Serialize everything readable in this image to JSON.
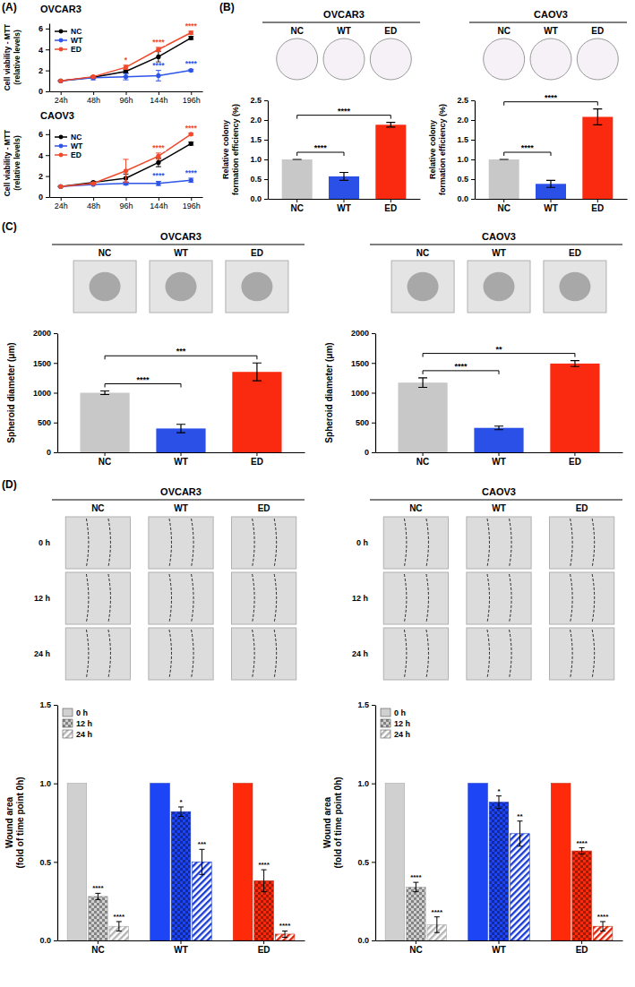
{
  "chart_data": [
    {
      "type": "line",
      "panel": "(A)",
      "title": "OVCAR3",
      "y_label": [
        "Cell viability - MTT",
        "(relative levels)"
      ],
      "categories": [
        "24h",
        "48h",
        "96h",
        "144h",
        "196h"
      ],
      "series": [
        {
          "name": "NC",
          "color": "#000000",
          "values": [
            1.0,
            1.35,
            1.9,
            3.3,
            5.1
          ],
          "errors": [
            0.03,
            0.08,
            0.15,
            0.5,
            0.15
          ]
        },
        {
          "name": "WT",
          "color": "#2d55e8",
          "values": [
            1.0,
            1.3,
            1.4,
            1.5,
            2.0
          ],
          "errors": [
            0.03,
            0.2,
            0.3,
            0.5,
            0.1
          ]
        },
        {
          "name": "ED",
          "color": "#f0492b",
          "values": [
            1.0,
            1.4,
            2.3,
            4.0,
            5.6
          ],
          "errors": [
            0.03,
            0.1,
            0.2,
            0.2,
            0.15
          ]
        }
      ],
      "ylim": [
        0,
        6.5
      ],
      "yticks": [
        0,
        2,
        4,
        6
      ],
      "marker": "circle",
      "legend": "upper left",
      "annotations": [
        {
          "text": "*",
          "series": "ED",
          "x": "96h"
        },
        {
          "text": "****",
          "series": "ED",
          "x": "144h"
        },
        {
          "text": "****",
          "series": "ED",
          "x": "196h"
        },
        {
          "text": "****",
          "series": "WT",
          "x": "144h"
        },
        {
          "text": "****",
          "series": "WT",
          "x": "196h"
        }
      ]
    },
    {
      "type": "line",
      "title": "CAOV3",
      "y_label": [
        "Cell viability - MTT",
        "(relative levels)"
      ],
      "categories": [
        "24h",
        "48h",
        "96h",
        "144h",
        "196h"
      ],
      "series": [
        {
          "name": "NC",
          "color": "#000000",
          "values": [
            1.0,
            1.4,
            1.8,
            3.3,
            5.1
          ],
          "errors": [
            0.03,
            0.05,
            0.4,
            0.4,
            0.15
          ]
        },
        {
          "name": "WT",
          "color": "#2d55e8",
          "values": [
            1.0,
            1.2,
            1.3,
            1.3,
            1.6
          ],
          "errors": [
            0.03,
            0.05,
            0.15,
            0.2,
            0.2
          ]
        },
        {
          "name": "ED",
          "color": "#f0492b",
          "values": [
            1.0,
            1.3,
            2.5,
            3.9,
            6.0
          ],
          "errors": [
            0.03,
            0.1,
            1.1,
            0.3,
            0.1
          ]
        }
      ],
      "ylim": [
        0,
        6.5
      ],
      "yticks": [
        0,
        2,
        4,
        6
      ],
      "marker": "circle",
      "legend": "upper left",
      "annotations": [
        {
          "text": "****",
          "series": "ED",
          "x": "144h"
        },
        {
          "text": "****",
          "series": "ED",
          "x": "196h"
        },
        {
          "text": "****",
          "series": "WT",
          "x": "144h"
        },
        {
          "text": "****",
          "series": "WT",
          "x": "196h"
        }
      ]
    },
    {
      "type": "bar",
      "panel": "(B)",
      "title": "OVCAR3",
      "image_labels": {
        "columns": [
          "NC",
          "WT",
          "ED"
        ]
      },
      "y_label": [
        "Relative colony",
        "formation efficiency (%)"
      ],
      "categories": [
        "NC",
        "WT",
        "ED"
      ],
      "values": [
        1.0,
        0.57,
        1.88
      ],
      "errors": [
        0,
        0.1,
        0.06
      ],
      "colors": [
        "#c8c8c8",
        "#2a50e8",
        "#fa2a10"
      ],
      "ylim": [
        0,
        2.5
      ],
      "yticks": [
        {
          "value": 0,
          "label": "0.0"
        },
        {
          "value": 0.5,
          "label": "0.5"
        },
        {
          "value": 1,
          "label": "1.0"
        },
        {
          "value": 1.5,
          "label": "1.5"
        },
        {
          "value": 2,
          "label": "2.0"
        },
        {
          "value": 2.5,
          "label": "2.5"
        }
      ],
      "annotations": [
        {
          "text": "****",
          "from": "NC",
          "to": "WT"
        },
        {
          "text": "****",
          "from": "NC",
          "to": "ED"
        }
      ]
    },
    {
      "type": "bar",
      "title": "CAOV3",
      "image_labels": {
        "columns": [
          "NC",
          "WT",
          "ED"
        ]
      },
      "y_label": [
        "Relative colony",
        "formation efficiency (%)"
      ],
      "categories": [
        "NC",
        "WT",
        "ED"
      ],
      "values": [
        1.0,
        0.38,
        2.08
      ],
      "errors": [
        0,
        0.09,
        0.2
      ],
      "colors": [
        "#c8c8c8",
        "#2a50e8",
        "#fa2a10"
      ],
      "ylim": [
        0,
        2.5
      ],
      "yticks": [
        {
          "value": 0,
          "label": "0.0"
        },
        {
          "value": 0.5,
          "label": "0.5"
        },
        {
          "value": 1,
          "label": "1.0"
        },
        {
          "value": 1.5,
          "label": "1.5"
        },
        {
          "value": 2,
          "label": "2.0"
        },
        {
          "value": 2.5,
          "label": "2.5"
        }
      ],
      "annotations": [
        {
          "text": "****",
          "from": "NC",
          "to": "WT"
        },
        {
          "text": "****",
          "from": "NC",
          "to": "ED"
        }
      ]
    },
    {
      "type": "bar",
      "panel": "(C)",
      "title": "OVCAR3",
      "image_labels": {
        "columns": [
          "NC",
          "WT",
          "ED"
        ]
      },
      "y_label": [
        "Spheroid diameter (μm)"
      ],
      "categories": [
        "NC",
        "WT",
        "ED"
      ],
      "values": [
        1000,
        400,
        1350
      ],
      "errors": [
        30,
        70,
        150
      ],
      "colors": [
        "#c8c8c8",
        "#2a50e8",
        "#fa2a10"
      ],
      "ylim": [
        0,
        2000
      ],
      "yticks": [
        0,
        500,
        1000,
        1500,
        2000
      ],
      "annotations": [
        {
          "text": "****",
          "from": "NC",
          "to": "WT"
        },
        {
          "text": "***",
          "from": "NC",
          "to": "ED"
        }
      ]
    },
    {
      "type": "bar",
      "title": "CAOV3",
      "image_labels": {
        "columns": [
          "NC",
          "WT",
          "ED"
        ]
      },
      "y_label": [
        "Spheroid diameter (μm)"
      ],
      "categories": [
        "NC",
        "WT",
        "ED"
      ],
      "values": [
        1170,
        410,
        1490
      ],
      "errors": [
        80,
        30,
        50
      ],
      "colors": [
        "#c8c8c8",
        "#2a50e8",
        "#fa2a10"
      ],
      "ylim": [
        0,
        2000
      ],
      "yticks": [
        0,
        500,
        1000,
        1500,
        2000
      ],
      "annotations": [
        {
          "text": "****",
          "from": "NC",
          "to": "WT"
        },
        {
          "text": "**",
          "from": "NC",
          "to": "ED"
        }
      ]
    },
    {
      "type": "grouped_bar",
      "panel": "(D)",
      "title": "OVCAR3",
      "image_labels": {
        "columns": [
          "NC",
          "WT",
          "ED"
        ],
        "rows": [
          "0 h",
          "12 h",
          "24 h"
        ]
      },
      "y_label": [
        "Wound area",
        "(fold of time point 0h)"
      ],
      "categories": [
        "NC",
        "WT",
        "ED"
      ],
      "colors": [
        "#d0d0d0",
        "#1e45f5",
        "#ff2a0a"
      ],
      "series": [
        {
          "name": "0 h",
          "values": [
            1,
            1,
            1
          ]
        },
        {
          "name": "12 h",
          "values": [
            0.28,
            0.82,
            0.38
          ],
          "errors": [
            0.02,
            0.03,
            0.07
          ]
        },
        {
          "name": "24 h",
          "values": [
            0.09,
            0.5,
            0.04
          ],
          "errors": [
            0.03,
            0.08,
            0.02
          ]
        }
      ],
      "ylim": [
        0,
        1.5
      ],
      "yticks": [
        {
          "value": 0,
          "label": "0.0"
        },
        {
          "value": 0.5,
          "label": "0.5"
        },
        {
          "value": 1,
          "label": "1.0"
        },
        {
          "value": 1.5,
          "label": "1.5"
        }
      ],
      "legend": "upper left",
      "annotations": [
        {
          "text": "****",
          "group": "NC",
          "series": "12 h"
        },
        {
          "text": "****",
          "group": "NC",
          "series": "24 h"
        },
        {
          "text": "*",
          "group": "WT",
          "series": "12 h"
        },
        {
          "text": "***",
          "group": "WT",
          "series": "24 h"
        },
        {
          "text": "****",
          "group": "ED",
          "series": "12 h"
        },
        {
          "text": "****",
          "group": "ED",
          "series": "24 h"
        }
      ]
    },
    {
      "type": "grouped_bar",
      "title": "CAOV3",
      "image_labels": {
        "columns": [
          "NC",
          "WT",
          "ED"
        ],
        "rows": [
          "0 h",
          "12 h",
          "24 h"
        ]
      },
      "y_label": [
        "Wound area",
        "(fold of time point 0h)"
      ],
      "categories": [
        "NC",
        "WT",
        "ED"
      ],
      "colors": [
        "#d0d0d0",
        "#1e45f5",
        "#ff2a0a"
      ],
      "series": [
        {
          "name": "0 h",
          "values": [
            1,
            1,
            1
          ]
        },
        {
          "name": "12 h",
          "values": [
            0.34,
            0.88,
            0.57
          ],
          "errors": [
            0.03,
            0.04,
            0.02
          ]
        },
        {
          "name": "24 h",
          "values": [
            0.1,
            0.68,
            0.09
          ],
          "errors": [
            0.05,
            0.08,
            0.03
          ]
        }
      ],
      "ylim": [
        0,
        1.5
      ],
      "yticks": [
        {
          "value": 0,
          "label": "0.0"
        },
        {
          "value": 0.5,
          "label": "0.5"
        },
        {
          "value": 1,
          "label": "1.0"
        },
        {
          "value": 1.5,
          "label": "1.5"
        }
      ],
      "legend": "upper left",
      "annotations": [
        {
          "text": "****",
          "group": "NC",
          "series": "12 h"
        },
        {
          "text": "****",
          "group": "NC",
          "series": "24 h"
        },
        {
          "text": "*",
          "group": "WT",
          "series": "12 h"
        },
        {
          "text": "**",
          "group": "WT",
          "series": "24 h"
        },
        {
          "text": "****",
          "group": "ED",
          "series": "12 h"
        },
        {
          "text": "****",
          "group": "ED",
          "series": "24 h"
        }
      ]
    }
  ]
}
